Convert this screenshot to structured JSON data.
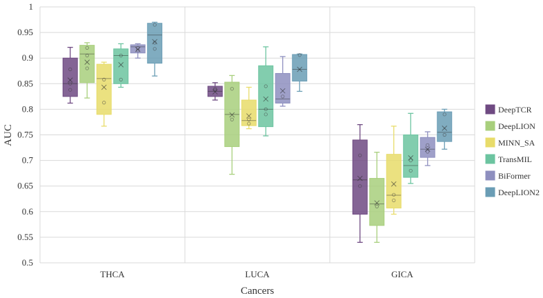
{
  "chart_data": {
    "type": "box",
    "xlabel": "Cancers",
    "ylabel": "AUC",
    "ylim": [
      0.5,
      1.0
    ],
    "yticks": [
      0.5,
      0.55,
      0.6,
      0.65,
      0.7,
      0.75,
      0.8,
      0.85,
      0.9,
      0.95,
      1
    ],
    "ytick_labels": [
      "0.5",
      "0.55",
      "0.6",
      "0.65",
      "0.7",
      "0.75",
      "0.8",
      "0.85",
      "0.9",
      "0.95",
      "1"
    ],
    "grid": true,
    "legend_position": "right",
    "categories": [
      "THCA",
      "LUCA",
      "GICA"
    ],
    "series": [
      {
        "name": "DeepTCR",
        "color": "#6f4a82",
        "boxes": [
          {
            "min": 0.812,
            "q1": 0.825,
            "median": 0.85,
            "q3": 0.9,
            "max": 0.921,
            "mean": 0.857,
            "points": [
              0.85,
              0.878,
              0.838
            ]
          },
          {
            "min": 0.818,
            "q1": 0.825,
            "median": 0.835,
            "q3": 0.845,
            "max": 0.852,
            "mean": 0.834,
            "points": [
              0.838,
              0.84
            ]
          },
          {
            "min": 0.54,
            "q1": 0.595,
            "median": 0.662,
            "q3": 0.74,
            "max": 0.77,
            "mean": 0.665,
            "points": [
              0.71,
              0.65
            ]
          }
        ]
      },
      {
        "name": "DeepLION",
        "color": "#a8cf7c",
        "boxes": [
          {
            "min": 0.822,
            "q1": 0.852,
            "median": 0.908,
            "q3": 0.925,
            "max": 0.93,
            "mean": 0.892,
            "points": [
              0.92,
              0.88,
              0.905
            ]
          },
          {
            "min": 0.673,
            "q1": 0.727,
            "median": 0.79,
            "q3": 0.853,
            "max": 0.866,
            "mean": 0.789,
            "points": [
              0.84,
              0.78
            ]
          },
          {
            "min": 0.54,
            "q1": 0.573,
            "median": 0.615,
            "q3": 0.665,
            "max": 0.716,
            "mean": 0.617,
            "points": [
              0.61
            ]
          }
        ]
      },
      {
        "name": "MINN_SA",
        "color": "#e8dc6a",
        "boxes": [
          {
            "min": 0.767,
            "q1": 0.79,
            "median": 0.86,
            "q3": 0.888,
            "max": 0.892,
            "mean": 0.843,
            "points": [
              0.858,
              0.813
            ]
          },
          {
            "min": 0.762,
            "q1": 0.768,
            "median": 0.778,
            "q3": 0.818,
            "max": 0.843,
            "mean": 0.787,
            "points": [
              0.78,
              0.772
            ]
          },
          {
            "min": 0.595,
            "q1": 0.607,
            "median": 0.632,
            "q3": 0.712,
            "max": 0.767,
            "mean": 0.654,
            "points": [
              0.633,
              0.622
            ]
          }
        ]
      },
      {
        "name": "TransMIL",
        "color": "#6cc4a0",
        "boxes": [
          {
            "min": 0.843,
            "q1": 0.85,
            "median": 0.905,
            "q3": 0.918,
            "max": 0.928,
            "mean": 0.887,
            "points": [
              0.905,
              0.858
            ]
          },
          {
            "min": 0.748,
            "q1": 0.766,
            "median": 0.8,
            "q3": 0.885,
            "max": 0.922,
            "mean": 0.82,
            "points": [
              0.845,
              0.8,
              0.79
            ]
          },
          {
            "min": 0.655,
            "q1": 0.667,
            "median": 0.69,
            "q3": 0.75,
            "max": 0.792,
            "mean": 0.705,
            "points": [
              0.7,
              0.68
            ]
          }
        ]
      },
      {
        "name": "BiFormer",
        "color": "#8e8fbf",
        "boxes": [
          {
            "min": 0.9,
            "q1": 0.91,
            "median": 0.922,
            "q3": 0.926,
            "max": 0.928,
            "mean": 0.917,
            "points": [
              0.92,
              0.915
            ]
          },
          {
            "min": 0.806,
            "q1": 0.812,
            "median": 0.82,
            "q3": 0.87,
            "max": 0.903,
            "mean": 0.836,
            "points": [
              0.825
            ]
          },
          {
            "min": 0.69,
            "q1": 0.706,
            "median": 0.722,
            "q3": 0.745,
            "max": 0.756,
            "mean": 0.722,
            "points": [
              0.73,
              0.717
            ]
          }
        ]
      },
      {
        "name": "DeepLION2",
        "color": "#6a9db5",
        "boxes": [
          {
            "min": 0.865,
            "q1": 0.89,
            "median": 0.945,
            "q3": 0.968,
            "max": 0.97,
            "mean": 0.932,
            "points": [
              0.965,
              0.93,
              0.918
            ]
          },
          {
            "min": 0.835,
            "q1": 0.855,
            "median": 0.878,
            "q3": 0.907,
            "max": 0.908,
            "mean": 0.878,
            "points": [
              0.906
            ]
          },
          {
            "min": 0.722,
            "q1": 0.737,
            "median": 0.755,
            "q3": 0.795,
            "max": 0.8,
            "mean": 0.763,
            "points": [
              0.79,
              0.75
            ]
          }
        ]
      }
    ]
  }
}
